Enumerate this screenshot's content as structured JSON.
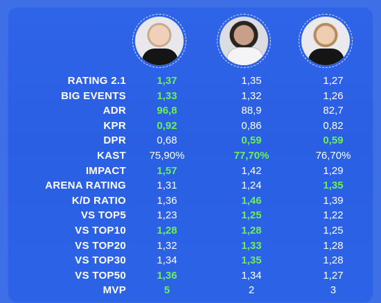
{
  "colors": {
    "background": "#2f64e8",
    "text": "#ffffff",
    "highlight": "#6cf05a"
  },
  "players": [
    {
      "avatar_icon": "player-photo-1"
    },
    {
      "avatar_icon": "player-photo-2"
    },
    {
      "avatar_icon": "player-photo-3"
    }
  ],
  "rows": [
    {
      "label": "RATING 2.1",
      "values": [
        "1,37",
        "1,35",
        "1,27"
      ],
      "best": [
        0
      ]
    },
    {
      "label": "BIG EVENTS",
      "values": [
        "1,33",
        "1,32",
        "1,26"
      ],
      "best": [
        0
      ]
    },
    {
      "label": "ADR",
      "values": [
        "96,8",
        "88,9",
        "82,7"
      ],
      "best": [
        0
      ]
    },
    {
      "label": "KPR",
      "values": [
        "0,92",
        "0,86",
        "0,82"
      ],
      "best": [
        0
      ]
    },
    {
      "label": "DPR",
      "values": [
        "0,68",
        "0,59",
        "0,59"
      ],
      "best": [
        1,
        2
      ]
    },
    {
      "label": "KAST",
      "values": [
        "75,90%",
        "77,70%",
        "76,70%"
      ],
      "best": [
        1
      ]
    },
    {
      "label": "IMPACT",
      "values": [
        "1,57",
        "1,42",
        "1,29"
      ],
      "best": [
        0
      ]
    },
    {
      "label": "ARENA RATING",
      "values": [
        "1,31",
        "1,24",
        "1,35"
      ],
      "best": [
        2
      ]
    },
    {
      "label": "K/D RATIO",
      "values": [
        "1,36",
        "1,46",
        "1,39"
      ],
      "best": [
        1
      ]
    },
    {
      "label": "VS TOP5",
      "values": [
        "1,23",
        "1,25",
        "1,22"
      ],
      "best": [
        1
      ]
    },
    {
      "label": "VS TOP10",
      "values": [
        "1,28",
        "1,28",
        "1,25"
      ],
      "best": [
        0,
        1
      ]
    },
    {
      "label": "VS TOP20",
      "values": [
        "1,32",
        "1,33",
        "1,28"
      ],
      "best": [
        1
      ]
    },
    {
      "label": "VS TOP30",
      "values": [
        "1,34",
        "1,35",
        "1,28"
      ],
      "best": [
        1
      ]
    },
    {
      "label": "VS TOP50",
      "values": [
        "1,36",
        "1,34",
        "1,27"
      ],
      "best": [
        0
      ]
    },
    {
      "label": "MVP",
      "values": [
        "5",
        "2",
        "3"
      ],
      "best": [
        0
      ]
    }
  ]
}
